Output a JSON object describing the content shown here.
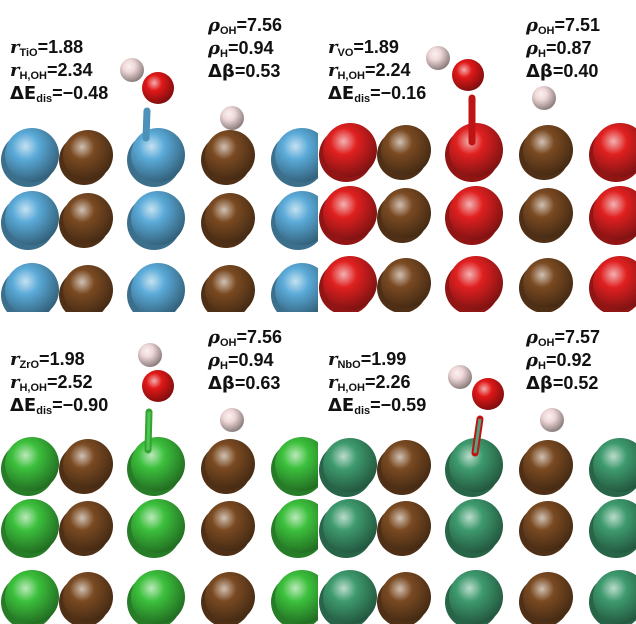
{
  "panels": [
    {
      "metal_color": "#5aaad8",
      "metal_sub": "TiO",
      "r_metal_o": "1.88",
      "r_h_oh_sub": "H,OH",
      "r_h_oh": "2.34",
      "de_sub": "dis",
      "de": "−0.48",
      "rho_oh_sub": "OH",
      "rho_oh": "7.56",
      "rho_h_sub": "H",
      "rho_h": "0.94",
      "dbeta": "0.53"
    },
    {
      "metal_color": "#e02020",
      "metal_sub": "VO",
      "r_metal_o": "1.89",
      "r_h_oh_sub": "H,OH",
      "r_h_oh": "2.24",
      "de_sub": "dis",
      "de": "−0.16",
      "rho_oh_sub": "OH",
      "rho_oh": "7.51",
      "rho_h_sub": "H",
      "rho_h": "0.87",
      "dbeta": "0.40"
    },
    {
      "metal_color": "#3cc03c",
      "metal_sub": "ZrO",
      "r_metal_o": "1.98",
      "r_h_oh_sub": "H,OH",
      "r_h_oh": "2.52",
      "de_sub": "dis",
      "de": "−0.90",
      "rho_oh_sub": "OH",
      "rho_oh": "7.56",
      "rho_h_sub": "H",
      "rho_h": "0.94",
      "dbeta": "0.63"
    },
    {
      "metal_color": "#3e9a6e",
      "metal_sub": "NbO",
      "r_metal_o": "1.99",
      "r_h_oh_sub": "H,OH",
      "r_h_oh": "2.26",
      "de_sub": "dis",
      "de": "−0.59",
      "rho_oh_sub": "OH",
      "rho_oh": "7.57",
      "rho_h_sub": "H",
      "rho_h": "0.92",
      "dbeta": "0.52"
    }
  ],
  "symbols": {
    "r": "r",
    "rho": "ρ",
    "delta_e": "ΔE",
    "delta_beta": "Δβ",
    "eq": "="
  },
  "atom_colors": {
    "carbon": "#7a4a22",
    "oxygen": "#e01818",
    "hydrogen": "#f0d8d8"
  }
}
